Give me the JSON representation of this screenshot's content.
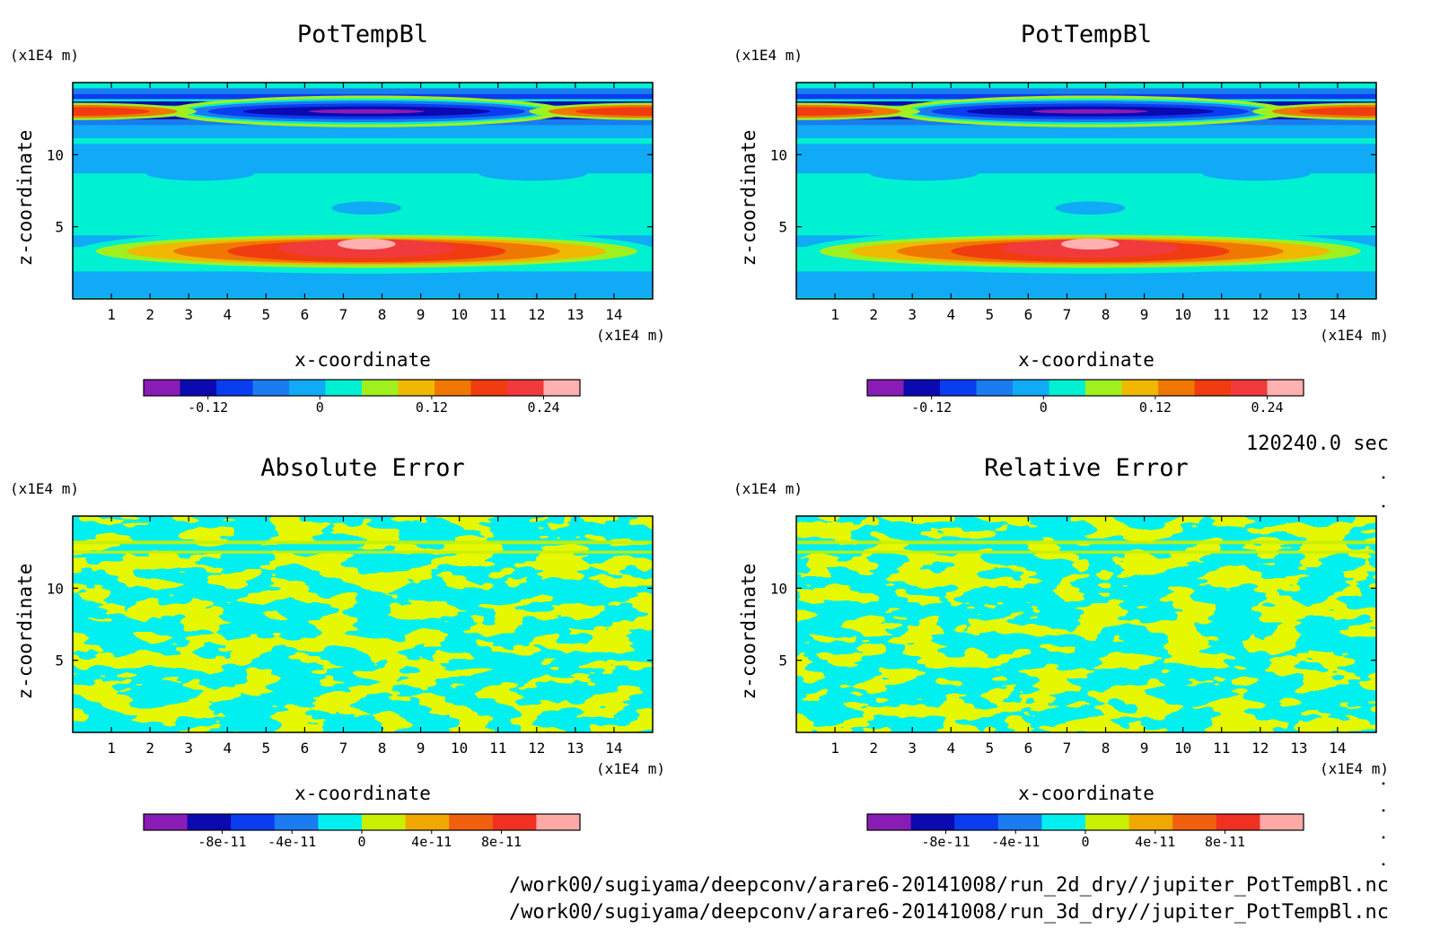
{
  "chart_data": [
    {
      "type": "heatmap",
      "title": "PotTempBl",
      "xlabel": "x-coordinate",
      "ylabel": "z-coordinate",
      "x_unit": "(x1E4 m)",
      "y_unit": "(x1E4 m)",
      "xlim": [
        0,
        15
      ],
      "ylim": [
        0,
        15
      ],
      "x_ticks": [
        "1",
        "2",
        "3",
        "4",
        "5",
        "6",
        "7",
        "8",
        "9",
        "10",
        "11",
        "12",
        "13",
        "14"
      ],
      "y_ticks": [
        "5",
        "10"
      ],
      "colorbar": {
        "levels": [
          -0.18,
          -0.15,
          -0.12,
          -0.09,
          -0.06,
          -0.03,
          0,
          0.03,
          0.06,
          0.09,
          0.12,
          0.15,
          0.18,
          0.21,
          0.24,
          0.27
        ],
        "tick_labels": [
          "-0.12",
          "0",
          "0.12",
          "0.24"
        ],
        "colors": [
          "#8a1cb6",
          "#0a0ab0",
          "#0a3cf0",
          "#1a7cf0",
          "#10aaf6",
          "#00f0d2",
          "#a0f020",
          "#f0b800",
          "#f07800",
          "#f03c10",
          "#f03a3c",
          "#ffb0b0"
        ]
      },
      "features": [
        {
          "kind": "warm anomaly",
          "x": 7.6,
          "z": 3.8,
          "value": 0.27
        },
        {
          "kind": "cold band",
          "x": 7.6,
          "z": 13.0,
          "value": -0.16
        },
        {
          "kind": "warm band",
          "x": 0.5,
          "z": 13.0,
          "value": 0.22
        }
      ]
    },
    {
      "type": "heatmap",
      "title": "PotTempBl",
      "xlabel": "x-coordinate",
      "ylabel": "z-coordinate",
      "x_unit": "(x1E4 m)",
      "y_unit": "(x1E4 m)",
      "xlim": [
        0,
        15
      ],
      "ylim": [
        0,
        15
      ],
      "x_ticks": [
        "1",
        "2",
        "3",
        "4",
        "5",
        "6",
        "7",
        "8",
        "9",
        "10",
        "11",
        "12",
        "13",
        "14"
      ],
      "y_ticks": [
        "5",
        "10"
      ],
      "colorbar": {
        "levels": [
          -0.18,
          -0.15,
          -0.12,
          -0.09,
          -0.06,
          -0.03,
          0,
          0.03,
          0.06,
          0.09,
          0.12,
          0.15,
          0.18,
          0.21,
          0.24,
          0.27
        ],
        "tick_labels": [
          "-0.12",
          "0",
          "0.12",
          "0.24"
        ],
        "colors": [
          "#8a1cb6",
          "#0a0ab0",
          "#0a3cf0",
          "#1a7cf0",
          "#10aaf6",
          "#00f0d2",
          "#a0f020",
          "#f0b800",
          "#f07800",
          "#f03c10",
          "#f03a3c",
          "#ffb0b0"
        ]
      },
      "features": [
        {
          "kind": "warm anomaly",
          "x": 7.6,
          "z": 3.8,
          "value": 0.27
        },
        {
          "kind": "cold band",
          "x": 7.6,
          "z": 13.0,
          "value": -0.16
        },
        {
          "kind": "warm band",
          "x": 0.5,
          "z": 13.0,
          "value": 0.22
        }
      ]
    },
    {
      "type": "heatmap",
      "title": "Absolute Error",
      "xlabel": "x-coordinate",
      "ylabel": "z-coordinate",
      "x_unit": "(x1E4 m)",
      "y_unit": "(x1E4 m)",
      "xlim": [
        0,
        15
      ],
      "ylim": [
        0,
        15
      ],
      "x_ticks": [
        "1",
        "2",
        "3",
        "4",
        "5",
        "6",
        "7",
        "8",
        "9",
        "10",
        "11",
        "12",
        "13",
        "14"
      ],
      "y_ticks": [
        "5",
        "10"
      ],
      "colorbar": {
        "levels": [
          "-1.2e-10",
          "-1e-10",
          "-8e-11",
          "-6e-11",
          "-4e-11",
          "-2e-11",
          "0",
          "2e-11",
          "4e-11",
          "6e-11",
          "8e-11",
          "1e-10",
          "1.2e-10"
        ],
        "tick_labels": [
          "-8e-11",
          "-4e-11",
          "0",
          "4e-11",
          "8e-11"
        ],
        "colors": [
          "#8a1cb6",
          "#0a0ab0",
          "#0a3cf0",
          "#1a7cf0",
          "#00f0f0",
          "#c8f000",
          "#f0a800",
          "#f06010",
          "#f03020",
          "#ffa8a8"
        ]
      },
      "values_present": [
        0,
        2e-11
      ],
      "pattern_colors": [
        "#00f0f0",
        "#c8f000"
      ]
    },
    {
      "type": "heatmap",
      "title": "Relative Error",
      "xlabel": "x-coordinate",
      "ylabel": "z-coordinate",
      "x_unit": "(x1E4 m)",
      "y_unit": "(x1E4 m)",
      "xlim": [
        0,
        15
      ],
      "ylim": [
        0,
        15
      ],
      "x_ticks": [
        "1",
        "2",
        "3",
        "4",
        "5",
        "6",
        "7",
        "8",
        "9",
        "10",
        "11",
        "12",
        "13",
        "14"
      ],
      "y_ticks": [
        "5",
        "10"
      ],
      "colorbar": {
        "levels": [
          "-1.2e-10",
          "-1e-10",
          "-8e-11",
          "-6e-11",
          "-4e-11",
          "-2e-11",
          "0",
          "2e-11",
          "4e-11",
          "6e-11",
          "8e-11",
          "1e-10",
          "1.2e-10"
        ],
        "tick_labels": [
          "-8e-11",
          "-4e-11",
          "0",
          "4e-11",
          "8e-11"
        ],
        "colors": [
          "#8a1cb6",
          "#0a0ab0",
          "#0a3cf0",
          "#1a7cf0",
          "#00f0f0",
          "#c8f000",
          "#f0a800",
          "#f06010",
          "#f03020",
          "#ffa8a8"
        ]
      },
      "values_present": [
        0,
        2e-11
      ],
      "pattern_colors": [
        "#00f0f0",
        "#c8f000"
      ]
    }
  ],
  "info": {
    "time": "120240.0 sec",
    "file1": "/work00/sugiyama/deepconv/arare6-20141008/run_2d_dry//jupiter_PotTempBl.nc",
    "file2": "/work00/sugiyama/deepconv/arare6-20141008/run_3d_dry//jupiter_PotTempBl.nc"
  }
}
